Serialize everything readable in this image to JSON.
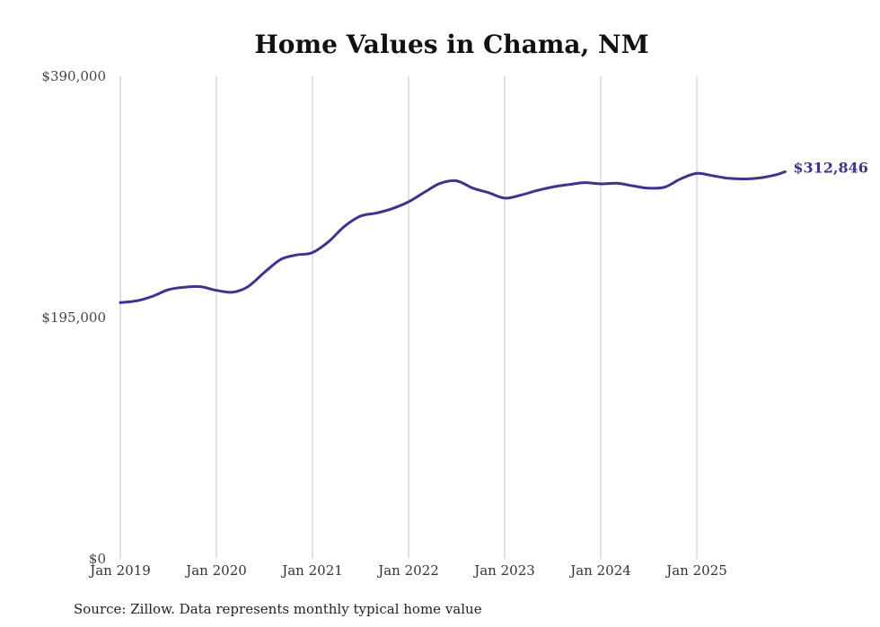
{
  "chart_data": {
    "type": "line",
    "title": "Home Values in Chama, NM",
    "xlabel": "",
    "ylabel": "",
    "x_range": [
      2019.0,
      2025.92
    ],
    "ylim": [
      0,
      390000
    ],
    "y_ticks": [
      {
        "value": 0,
        "label": "$0"
      },
      {
        "value": 195000,
        "label": "$195,000"
      },
      {
        "value": 390000,
        "label": "$390,000"
      }
    ],
    "x_ticks": [
      {
        "value": 2019,
        "label": "Jan 2019"
      },
      {
        "value": 2020,
        "label": "Jan 2020"
      },
      {
        "value": 2021,
        "label": "Jan 2021"
      },
      {
        "value": 2022,
        "label": "Jan 2022"
      },
      {
        "value": 2023,
        "label": "Jan 2023"
      },
      {
        "value": 2024,
        "label": "Jan 2024"
      },
      {
        "value": 2025,
        "label": "Jan 2025"
      }
    ],
    "grid": "vertical",
    "series": [
      {
        "name": "Typical home value",
        "color": "#3b3590",
        "x": [
          2019.0,
          2019.17,
          2019.33,
          2019.5,
          2019.67,
          2019.83,
          2020.0,
          2020.17,
          2020.33,
          2020.5,
          2020.67,
          2020.83,
          2021.0,
          2021.17,
          2021.33,
          2021.5,
          2021.67,
          2021.83,
          2022.0,
          2022.17,
          2022.33,
          2022.5,
          2022.67,
          2022.83,
          2023.0,
          2023.17,
          2023.33,
          2023.5,
          2023.67,
          2023.83,
          2024.0,
          2024.17,
          2024.33,
          2024.5,
          2024.67,
          2024.83,
          2025.0,
          2025.17,
          2025.33,
          2025.5,
          2025.67,
          2025.83,
          2025.92
        ],
        "values": [
          207000,
          208500,
          212000,
          217500,
          219500,
          220000,
          217000,
          215500,
          220000,
          231500,
          242000,
          245500,
          247500,
          256500,
          268500,
          277000,
          279500,
          283000,
          288500,
          296500,
          303500,
          305500,
          299500,
          296000,
          291500,
          294000,
          297500,
          300500,
          302500,
          304000,
          303000,
          303500,
          301500,
          299500,
          300500,
          307000,
          311500,
          309500,
          307500,
          307000,
          308000,
          310500,
          312846
        ]
      }
    ],
    "end_label": "$312,846"
  },
  "source_note": "Source: Zillow. Data represents monthly typical home value"
}
